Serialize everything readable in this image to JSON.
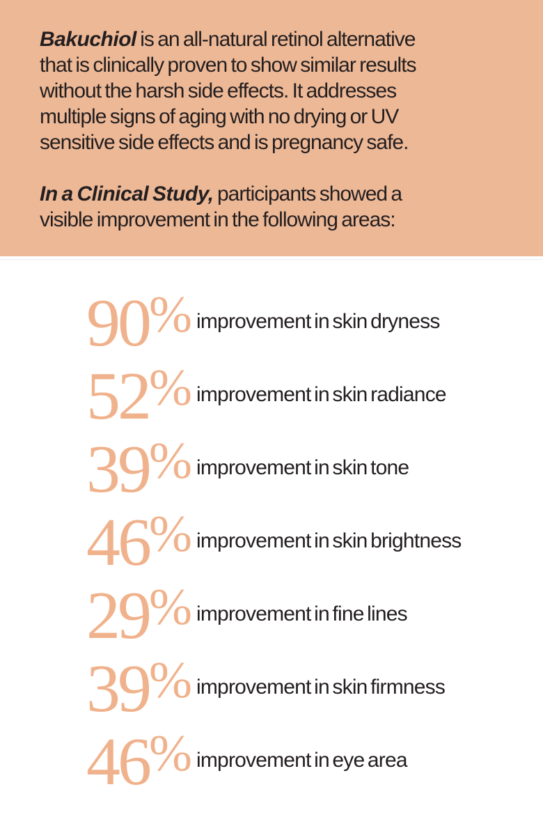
{
  "colors": {
    "hero_bg": "#edb896",
    "accent": "#f0b28c",
    "ink": "#231e1f",
    "divider": "#eaeaea"
  },
  "hero": {
    "intro_lines": [
      {
        "bold": "Bakuchiol",
        "text": " is an all-natural retinol alternative"
      },
      {
        "bold": "",
        "text": "that is clinically proven to show similar results"
      },
      {
        "bold": "",
        "text": "without the harsh side effects. It addresses"
      },
      {
        "bold": "",
        "text": "multiple signs of aging with no drying or UV"
      },
      {
        "bold": "",
        "text": "sensitive side effects and is pregnancy safe."
      }
    ],
    "study_lines": [
      {
        "bold": "In a Clinical Study,",
        "text": " participants showed a"
      },
      {
        "bold": "",
        "text": "visible improvement in the following areas:"
      }
    ]
  },
  "stats": [
    {
      "value": "90",
      "unit": "%",
      "label": "improvement in skin dryness"
    },
    {
      "value": "52",
      "unit": "%",
      "label": "improvement in skin radiance"
    },
    {
      "value": "39",
      "unit": "%",
      "label": "improvement in skin tone"
    },
    {
      "value": "46",
      "unit": "%",
      "label": "improvement in skin brightness"
    },
    {
      "value": "29",
      "unit": "%",
      "label": "improvement in fine lines"
    },
    {
      "value": "39",
      "unit": "%",
      "label": "improvement in skin firmness"
    },
    {
      "value": "46",
      "unit": "%",
      "label": "improvement in eye area"
    }
  ]
}
